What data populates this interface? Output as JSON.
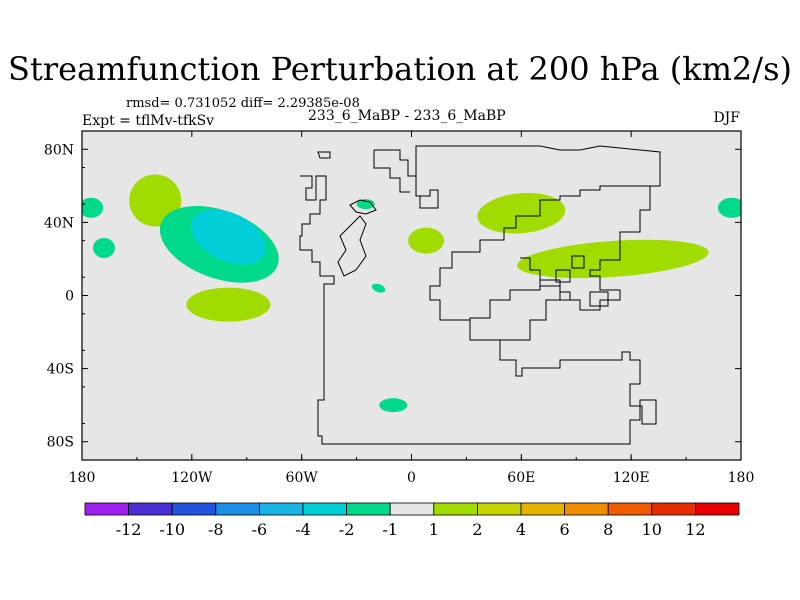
{
  "chart_data": {
    "type": "heatmap",
    "title": "Streamfunction Perturbation at 200 hPa (km2/s)",
    "stats_line": "rmsd= 0.731052 diff= 2.29385e-08",
    "left_label": "Expt = tflMv-tfkSv",
    "center_label": "233_6_MaBP - 233_6_MaBP",
    "right_label": "DJF",
    "x_ticks": [
      {
        "value": -180,
        "label": "180"
      },
      {
        "value": -120,
        "label": "120W"
      },
      {
        "value": -60,
        "label": "60W"
      },
      {
        "value": 0,
        "label": "0"
      },
      {
        "value": 60,
        "label": "60E"
      },
      {
        "value": 120,
        "label": "120E"
      },
      {
        "value": 180,
        "label": "180"
      }
    ],
    "y_ticks": [
      {
        "value": 80,
        "label": "80N"
      },
      {
        "value": 40,
        "label": "40N"
      },
      {
        "value": 0,
        "label": "0"
      },
      {
        "value": -40,
        "label": "40S"
      },
      {
        "value": -80,
        "label": "80S"
      }
    ],
    "xlim": [
      -180,
      180
    ],
    "ylim": [
      -90,
      90
    ],
    "background_color": "#e6e6e6",
    "colorbar": {
      "levels": [
        "-12",
        "-10",
        "-8",
        "-6",
        "-4",
        "-2",
        "-1",
        "1",
        "2",
        "4",
        "6",
        "8",
        "10",
        "12"
      ],
      "colors": [
        "#a020f0",
        "#4b2dd6",
        "#2054e0",
        "#1a8fe6",
        "#1ab4e6",
        "#00cfd8",
        "#00d98a",
        "#e6e6e6",
        "#a0dc00",
        "#c8d400",
        "#e6b400",
        "#f08c00",
        "#f05a00",
        "#e62d00",
        "#e60000"
      ]
    },
    "anomaly_regions": [
      {
        "label": "2",
        "center_lon": -140,
        "center_lat": 52,
        "color": "#a0dc00"
      },
      {
        "label": "-1",
        "center_lon": -105,
        "center_lat": 28,
        "color": "#00d98a"
      },
      {
        "label": "-2",
        "center_lon": -100,
        "center_lat": 32,
        "color": "#00cfd8"
      },
      {
        "label": "1",
        "center_lon": -100,
        "center_lat": -5,
        "color": "#a0dc00"
      },
      {
        "label": "-1",
        "center_lon": -168,
        "center_lat": 26,
        "color": "#00d98a"
      },
      {
        "label": "-1",
        "center_lon": -175,
        "center_lat": 48,
        "color": "#00d98a"
      },
      {
        "label": "-1",
        "center_lon": 175,
        "center_lat": 48,
        "color": "#00d98a"
      },
      {
        "label": "2",
        "center_lon": 8,
        "center_lat": 30,
        "color": "#a0dc00"
      },
      {
        "label": "1",
        "center_lon": 60,
        "center_lat": 45,
        "color": "#a0dc00"
      },
      {
        "label": "1",
        "center_lon": 110,
        "center_lat": 20,
        "color": "#a0dc00"
      },
      {
        "label": "-1",
        "center_lon": -10,
        "center_lat": -60,
        "color": "#00d98a"
      },
      {
        "label": "-1",
        "center_lon": -25,
        "center_lat": 50,
        "color": "#00d98a"
      },
      {
        "label": "-1",
        "center_lon": -18,
        "center_lat": 4,
        "color": "#00d98a"
      }
    ]
  }
}
